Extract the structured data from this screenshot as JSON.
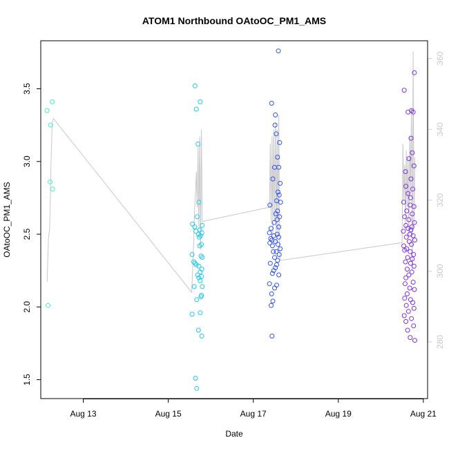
{
  "chart_data": {
    "type": "scatter",
    "title": "ATOM1 Northbound OAtoOC_PM1_AMS",
    "xlabel": "Date",
    "ylabel": "OAtoOC_PM1_AMS",
    "xlim": [
      12.0,
      21.1
    ],
    "ylim": [
      1.37,
      3.83
    ],
    "y2lim": [
      264.0,
      365.0
    ],
    "x_ticks": [
      {
        "value": 13,
        "label": "Aug 13"
      },
      {
        "value": 15,
        "label": "Aug 15"
      },
      {
        "value": 17,
        "label": "Aug 17"
      },
      {
        "value": 19,
        "label": "Aug 19"
      },
      {
        "value": 21,
        "label": "Aug 21"
      }
    ],
    "y_ticks": [
      {
        "value": 1.5,
        "label": "1.5"
      },
      {
        "value": 2.0,
        "label": "2.0"
      },
      {
        "value": 2.5,
        "label": "2.5"
      },
      {
        "value": 3.0,
        "label": "3.0"
      },
      {
        "value": 3.5,
        "label": "3.5"
      }
    ],
    "y2_ticks": [
      {
        "value": 280,
        "label": "280"
      },
      {
        "value": 300,
        "label": "300"
      },
      {
        "value": 320,
        "label": "320"
      },
      {
        "value": 340,
        "label": "340"
      },
      {
        "value": 360,
        "label": "360"
      }
    ],
    "series": [
      {
        "name": "scatter-group-aug12",
        "color": "#3af5c8",
        "points": [
          [
            12.15,
            3.35
          ],
          [
            12.27,
            3.41
          ],
          [
            12.23,
            3.25
          ],
          [
            12.22,
            2.86
          ],
          [
            12.28,
            2.81
          ],
          [
            12.17,
            2.01
          ]
        ]
      },
      {
        "name": "scatter-group-aug15",
        "color": "#1cc9f0",
        "points": [
          [
            15.63,
            3.52
          ],
          [
            15.66,
            3.36
          ],
          [
            15.75,
            3.41
          ],
          [
            15.7,
            3.12
          ],
          [
            15.72,
            2.72
          ],
          [
            15.68,
            2.62
          ],
          [
            15.57,
            2.57
          ],
          [
            15.8,
            2.56
          ],
          [
            15.62,
            2.55
          ],
          [
            15.74,
            2.53
          ],
          [
            15.65,
            2.52
          ],
          [
            15.79,
            2.51
          ],
          [
            15.71,
            2.5
          ],
          [
            15.76,
            2.49
          ],
          [
            15.73,
            2.48
          ],
          [
            15.78,
            2.43
          ],
          [
            15.74,
            2.42
          ],
          [
            15.56,
            2.36
          ],
          [
            15.77,
            2.35
          ],
          [
            15.8,
            2.34
          ],
          [
            15.6,
            2.31
          ],
          [
            15.63,
            2.3
          ],
          [
            15.66,
            2.29
          ],
          [
            15.72,
            2.28
          ],
          [
            15.79,
            2.26
          ],
          [
            15.75,
            2.24
          ],
          [
            15.69,
            2.22
          ],
          [
            15.78,
            2.21
          ],
          [
            15.72,
            2.2
          ],
          [
            15.75,
            2.18
          ],
          [
            15.61,
            2.14
          ],
          [
            15.8,
            2.14
          ],
          [
            15.78,
            2.08
          ],
          [
            15.77,
            2.07
          ],
          [
            15.67,
            2.05
          ],
          [
            15.56,
            1.95
          ],
          [
            15.75,
            1.96
          ],
          [
            15.71,
            1.84
          ],
          [
            15.79,
            1.8
          ],
          [
            15.64,
            1.51
          ],
          [
            15.67,
            1.44
          ]
        ]
      },
      {
        "name": "scatter-group-aug17",
        "color": "#2f52ec",
        "points": [
          [
            17.59,
            3.76
          ],
          [
            17.43,
            3.4
          ],
          [
            17.52,
            3.32
          ],
          [
            17.51,
            3.25
          ],
          [
            17.54,
            3.19
          ],
          [
            17.62,
            3.13
          ],
          [
            17.57,
            3.03
          ],
          [
            17.5,
            2.96
          ],
          [
            17.6,
            2.96
          ],
          [
            17.46,
            2.88
          ],
          [
            17.63,
            2.85
          ],
          [
            17.58,
            2.79
          ],
          [
            17.61,
            2.77
          ],
          [
            17.55,
            2.73
          ],
          [
            17.64,
            2.72
          ],
          [
            17.39,
            2.7
          ],
          [
            17.57,
            2.66
          ],
          [
            17.53,
            2.64
          ],
          [
            17.62,
            2.62
          ],
          [
            17.56,
            2.6
          ],
          [
            17.49,
            2.58
          ],
          [
            17.6,
            2.55
          ],
          [
            17.42,
            2.54
          ],
          [
            17.38,
            2.51
          ],
          [
            17.56,
            2.5
          ],
          [
            17.48,
            2.49
          ],
          [
            17.6,
            2.48
          ],
          [
            17.41,
            2.47
          ],
          [
            17.44,
            2.46
          ],
          [
            17.52,
            2.45
          ],
          [
            17.39,
            2.44
          ],
          [
            17.58,
            2.43
          ],
          [
            17.45,
            2.42
          ],
          [
            17.63,
            2.4
          ],
          [
            17.47,
            2.38
          ],
          [
            17.54,
            2.38
          ],
          [
            17.61,
            2.36
          ],
          [
            17.5,
            2.34
          ],
          [
            17.57,
            2.32
          ],
          [
            17.4,
            2.3
          ],
          [
            17.55,
            2.29
          ],
          [
            17.52,
            2.27
          ],
          [
            17.48,
            2.25
          ],
          [
            17.45,
            2.23
          ],
          [
            17.6,
            2.22
          ],
          [
            17.38,
            2.16
          ],
          [
            17.55,
            2.15
          ],
          [
            17.5,
            2.13
          ],
          [
            17.43,
            2.09
          ],
          [
            17.46,
            2.04
          ],
          [
            17.42,
            2.01
          ],
          [
            17.44,
            1.8
          ]
        ]
      },
      {
        "name": "scatter-group-aug20",
        "color": "#7f2ee6",
        "points": [
          [
            20.79,
            3.61
          ],
          [
            20.55,
            3.49
          ],
          [
            20.64,
            3.34
          ],
          [
            20.76,
            3.34
          ],
          [
            20.72,
            3.35
          ],
          [
            20.71,
            3.16
          ],
          [
            20.74,
            3.06
          ],
          [
            20.66,
            3.02
          ],
          [
            20.78,
            2.97
          ],
          [
            20.58,
            2.93
          ],
          [
            20.71,
            2.88
          ],
          [
            20.59,
            2.83
          ],
          [
            20.75,
            2.81
          ],
          [
            20.64,
            2.78
          ],
          [
            20.7,
            2.75
          ],
          [
            20.54,
            2.72
          ],
          [
            20.69,
            2.7
          ],
          [
            20.78,
            2.69
          ],
          [
            20.61,
            2.66
          ],
          [
            20.74,
            2.64
          ],
          [
            20.56,
            2.62
          ],
          [
            20.66,
            2.6
          ],
          [
            20.79,
            2.58
          ],
          [
            20.59,
            2.56
          ],
          [
            20.73,
            2.55
          ],
          [
            20.64,
            2.54
          ],
          [
            20.71,
            2.53
          ],
          [
            20.53,
            2.52
          ],
          [
            20.68,
            2.5
          ],
          [
            20.76,
            2.49
          ],
          [
            20.6,
            2.48
          ],
          [
            20.8,
            2.46
          ],
          [
            20.67,
            2.45
          ],
          [
            20.72,
            2.43
          ],
          [
            20.54,
            2.42
          ],
          [
            20.61,
            2.4
          ],
          [
            20.56,
            2.39
          ],
          [
            20.69,
            2.38
          ],
          [
            20.77,
            2.36
          ],
          [
            20.63,
            2.34
          ],
          [
            20.74,
            2.33
          ],
          [
            20.58,
            2.31
          ],
          [
            20.7,
            2.3
          ],
          [
            20.78,
            2.28
          ],
          [
            20.62,
            2.26
          ],
          [
            20.73,
            2.24
          ],
          [
            20.66,
            2.22
          ],
          [
            20.59,
            2.2
          ],
          [
            20.76,
            2.17
          ],
          [
            20.57,
            2.16
          ],
          [
            20.68,
            2.13
          ],
          [
            20.79,
            2.12
          ],
          [
            20.62,
            2.09
          ],
          [
            20.56,
            2.06
          ],
          [
            20.7,
            2.05
          ],
          [
            20.75,
            2.03
          ],
          [
            20.6,
            2.01
          ],
          [
            20.78,
            1.99
          ],
          [
            20.65,
            1.97
          ],
          [
            20.55,
            1.94
          ],
          [
            20.72,
            1.92
          ],
          [
            20.59,
            1.9
          ],
          [
            20.77,
            1.87
          ],
          [
            20.63,
            1.84
          ],
          [
            20.69,
            1.79
          ],
          [
            20.8,
            1.77
          ]
        ]
      }
    ],
    "line_series": {
      "name": "secondary-axis-line",
      "color": "#c8c8c8",
      "axis": "right",
      "points": [
        [
          12.15,
          297
        ],
        [
          12.18,
          309
        ],
        [
          12.21,
          312
        ],
        [
          12.24,
          330
        ],
        [
          12.27,
          342
        ],
        [
          12.3,
          343
        ],
        [
          15.55,
          294
        ],
        [
          15.58,
          302
        ],
        [
          15.6,
          309
        ],
        [
          15.62,
          318
        ],
        [
          15.64,
          322
        ],
        [
          15.66,
          328
        ],
        [
          15.68,
          318
        ],
        [
          15.7,
          335
        ],
        [
          15.72,
          312
        ],
        [
          15.74,
          338
        ],
        [
          15.76,
          306
        ],
        [
          15.78,
          340
        ],
        [
          15.8,
          314
        ],
        [
          17.38,
          318
        ],
        [
          17.4,
          336
        ],
        [
          17.42,
          314
        ],
        [
          17.44,
          338
        ],
        [
          17.46,
          310
        ],
        [
          17.48,
          340
        ],
        [
          17.5,
          314
        ],
        [
          17.52,
          342
        ],
        [
          17.54,
          308
        ],
        [
          17.56,
          340
        ],
        [
          17.58,
          310
        ],
        [
          17.6,
          344
        ],
        [
          17.62,
          304
        ],
        [
          17.64,
          303
        ],
        [
          20.5,
          308
        ],
        [
          20.52,
          336
        ],
        [
          20.54,
          320
        ],
        [
          20.56,
          330
        ],
        [
          20.58,
          312
        ],
        [
          20.6,
          334
        ],
        [
          20.62,
          318
        ],
        [
          20.64,
          332
        ],
        [
          20.66,
          310
        ],
        [
          20.68,
          338
        ],
        [
          20.7,
          322
        ],
        [
          20.72,
          346
        ],
        [
          20.74,
          300
        ],
        [
          20.76,
          362
        ],
        [
          20.78,
          312
        ],
        [
          20.8,
          332
        ]
      ]
    }
  }
}
